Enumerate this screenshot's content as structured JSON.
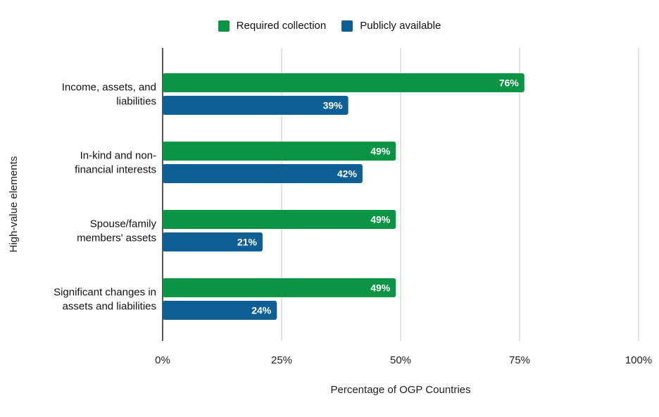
{
  "chart_data": {
    "type": "bar",
    "orientation": "horizontal",
    "categories": [
      [
        "Income, assets, and",
        "liabilities"
      ],
      [
        "In-kind and non-",
        "financial interests"
      ],
      [
        "Spouse/family",
        "members' assets"
      ],
      [
        "Significant changes in",
        "assets and liabilities"
      ]
    ],
    "series": [
      {
        "name": "Required collection",
        "color": "#0b9444",
        "values": [
          76,
          49,
          49,
          49
        ]
      },
      {
        "name": "Publicly available",
        "color": "#0d5f96",
        "values": [
          39,
          42,
          21,
          24
        ]
      }
    ],
    "value_suffix": "%",
    "xlabel": "Percentage of OGP Countries",
    "ylabel": "High-value elements",
    "xlim": [
      0,
      100
    ],
    "xticks": [
      "0%",
      "25%",
      "50%",
      "75%",
      "100%"
    ],
    "grid": true,
    "legend_position": "top-center"
  }
}
